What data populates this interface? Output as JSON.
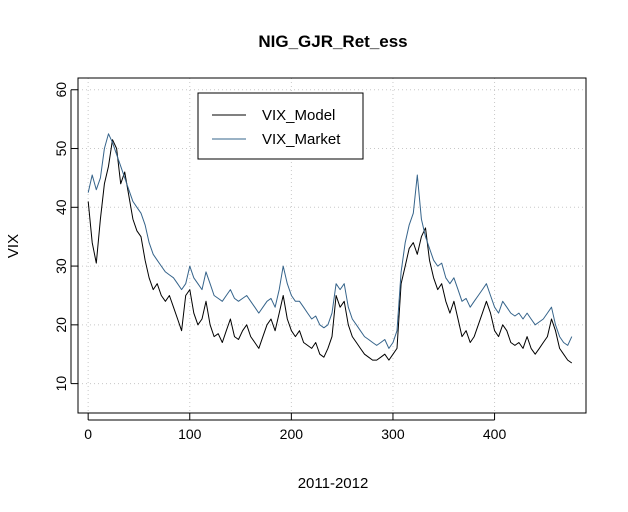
{
  "chart_data": {
    "type": "line",
    "title": "NIG_GJR_Ret_ess",
    "xlabel": "2011-2012",
    "ylabel": "VIX",
    "xlim": [
      -10,
      490
    ],
    "ylim": [
      5,
      62
    ],
    "xticks": [
      0,
      100,
      200,
      300,
      400
    ],
    "yticks": [
      10,
      20,
      30,
      40,
      50,
      60
    ],
    "grid": true,
    "legend_position": "top-left-inset",
    "series": [
      {
        "name": "VIX_Model",
        "color": "#000000",
        "points": [
          [
            0,
            41
          ],
          [
            4,
            34
          ],
          [
            8,
            30.5
          ],
          [
            12,
            38
          ],
          [
            16,
            44
          ],
          [
            20,
            47
          ],
          [
            24,
            51.5
          ],
          [
            28,
            50
          ],
          [
            32,
            44
          ],
          [
            36,
            46
          ],
          [
            40,
            42
          ],
          [
            44,
            38
          ],
          [
            48,
            36
          ],
          [
            52,
            35
          ],
          [
            56,
            31
          ],
          [
            60,
            28
          ],
          [
            64,
            26
          ],
          [
            68,
            27
          ],
          [
            72,
            25
          ],
          [
            76,
            24
          ],
          [
            80,
            25
          ],
          [
            84,
            23
          ],
          [
            88,
            21
          ],
          [
            92,
            19
          ],
          [
            96,
            25
          ],
          [
            100,
            26
          ],
          [
            104,
            22
          ],
          [
            108,
            20
          ],
          [
            112,
            21
          ],
          [
            116,
            24
          ],
          [
            120,
            20
          ],
          [
            124,
            18
          ],
          [
            128,
            18.5
          ],
          [
            132,
            17
          ],
          [
            136,
            19
          ],
          [
            140,
            21
          ],
          [
            144,
            18
          ],
          [
            148,
            17.5
          ],
          [
            152,
            19
          ],
          [
            156,
            20
          ],
          [
            160,
            18
          ],
          [
            164,
            17
          ],
          [
            168,
            16
          ],
          [
            172,
            18
          ],
          [
            176,
            20
          ],
          [
            180,
            21
          ],
          [
            184,
            19
          ],
          [
            188,
            22
          ],
          [
            192,
            25
          ],
          [
            196,
            21
          ],
          [
            200,
            19
          ],
          [
            204,
            18
          ],
          [
            208,
            19
          ],
          [
            212,
            17
          ],
          [
            216,
            16.5
          ],
          [
            220,
            16
          ],
          [
            224,
            17
          ],
          [
            228,
            15
          ],
          [
            232,
            14.5
          ],
          [
            236,
            16
          ],
          [
            240,
            18
          ],
          [
            244,
            25
          ],
          [
            248,
            23
          ],
          [
            252,
            24
          ],
          [
            256,
            20
          ],
          [
            260,
            18
          ],
          [
            264,
            17
          ],
          [
            268,
            16
          ],
          [
            272,
            15
          ],
          [
            276,
            14.5
          ],
          [
            280,
            14
          ],
          [
            284,
            14
          ],
          [
            288,
            14.5
          ],
          [
            292,
            15
          ],
          [
            296,
            14
          ],
          [
            300,
            15
          ],
          [
            304,
            16
          ],
          [
            308,
            27
          ],
          [
            312,
            30
          ],
          [
            316,
            33
          ],
          [
            320,
            34
          ],
          [
            324,
            32
          ],
          [
            328,
            35
          ],
          [
            332,
            36.5
          ],
          [
            336,
            31
          ],
          [
            340,
            28
          ],
          [
            344,
            26
          ],
          [
            348,
            27
          ],
          [
            352,
            24
          ],
          [
            356,
            22
          ],
          [
            360,
            24
          ],
          [
            364,
            21
          ],
          [
            368,
            18
          ],
          [
            372,
            19
          ],
          [
            376,
            17
          ],
          [
            380,
            18
          ],
          [
            384,
            20
          ],
          [
            388,
            22
          ],
          [
            392,
            24
          ],
          [
            396,
            22
          ],
          [
            400,
            19
          ],
          [
            404,
            18
          ],
          [
            408,
            20
          ],
          [
            412,
            19
          ],
          [
            416,
            17
          ],
          [
            420,
            16.5
          ],
          [
            424,
            17
          ],
          [
            428,
            16
          ],
          [
            432,
            18
          ],
          [
            436,
            16
          ],
          [
            440,
            15
          ],
          [
            444,
            16
          ],
          [
            448,
            17
          ],
          [
            452,
            18
          ],
          [
            456,
            21
          ],
          [
            460,
            19
          ],
          [
            464,
            16
          ],
          [
            468,
            15
          ],
          [
            472,
            14
          ],
          [
            476,
            13.5
          ]
        ]
      },
      {
        "name": "VIX_Market",
        "color": "#36648b",
        "points": [
          [
            0,
            42.5
          ],
          [
            4,
            45.5
          ],
          [
            8,
            43
          ],
          [
            12,
            45
          ],
          [
            16,
            50
          ],
          [
            20,
            52.5
          ],
          [
            24,
            51
          ],
          [
            28,
            49
          ],
          [
            32,
            47
          ],
          [
            36,
            45
          ],
          [
            40,
            43
          ],
          [
            44,
            41
          ],
          [
            48,
            40
          ],
          [
            52,
            39
          ],
          [
            56,
            37
          ],
          [
            60,
            34
          ],
          [
            64,
            32
          ],
          [
            68,
            31
          ],
          [
            72,
            30
          ],
          [
            76,
            29
          ],
          [
            80,
            28.5
          ],
          [
            84,
            28
          ],
          [
            88,
            27
          ],
          [
            92,
            26
          ],
          [
            96,
            27
          ],
          [
            100,
            30
          ],
          [
            104,
            28
          ],
          [
            108,
            27
          ],
          [
            112,
            26
          ],
          [
            116,
            29
          ],
          [
            120,
            27
          ],
          [
            124,
            25
          ],
          [
            128,
            24.5
          ],
          [
            132,
            24
          ],
          [
            136,
            25
          ],
          [
            140,
            26
          ],
          [
            144,
            24.5
          ],
          [
            148,
            24
          ],
          [
            152,
            24.5
          ],
          [
            156,
            25
          ],
          [
            160,
            24
          ],
          [
            164,
            23
          ],
          [
            168,
            22
          ],
          [
            172,
            23
          ],
          [
            176,
            24
          ],
          [
            180,
            24.5
          ],
          [
            184,
            23
          ],
          [
            188,
            26
          ],
          [
            192,
            30
          ],
          [
            196,
            27
          ],
          [
            200,
            25
          ],
          [
            204,
            24
          ],
          [
            208,
            24
          ],
          [
            212,
            23
          ],
          [
            216,
            22
          ],
          [
            220,
            21
          ],
          [
            224,
            21.5
          ],
          [
            228,
            20
          ],
          [
            232,
            19.5
          ],
          [
            236,
            20
          ],
          [
            240,
            22
          ],
          [
            244,
            27
          ],
          [
            248,
            26
          ],
          [
            252,
            27
          ],
          [
            256,
            23
          ],
          [
            260,
            21
          ],
          [
            264,
            20
          ],
          [
            268,
            19
          ],
          [
            272,
            18
          ],
          [
            276,
            17.5
          ],
          [
            280,
            17
          ],
          [
            284,
            16.5
          ],
          [
            288,
            17
          ],
          [
            292,
            17.5
          ],
          [
            296,
            16
          ],
          [
            300,
            17
          ],
          [
            304,
            19
          ],
          [
            308,
            29
          ],
          [
            312,
            34
          ],
          [
            316,
            37
          ],
          [
            320,
            39
          ],
          [
            324,
            45.5
          ],
          [
            328,
            38
          ],
          [
            332,
            35
          ],
          [
            336,
            33
          ],
          [
            340,
            31
          ],
          [
            344,
            30
          ],
          [
            348,
            30.5
          ],
          [
            352,
            28
          ],
          [
            356,
            27
          ],
          [
            360,
            28
          ],
          [
            364,
            26
          ],
          [
            368,
            24
          ],
          [
            372,
            24.5
          ],
          [
            376,
            23
          ],
          [
            380,
            24
          ],
          [
            384,
            25
          ],
          [
            388,
            26
          ],
          [
            392,
            27
          ],
          [
            396,
            25
          ],
          [
            400,
            23
          ],
          [
            404,
            22
          ],
          [
            408,
            24
          ],
          [
            412,
            23
          ],
          [
            416,
            22
          ],
          [
            420,
            21.5
          ],
          [
            424,
            22
          ],
          [
            428,
            21
          ],
          [
            432,
            22
          ],
          [
            436,
            21
          ],
          [
            440,
            20
          ],
          [
            444,
            20.5
          ],
          [
            448,
            21
          ],
          [
            452,
            22
          ],
          [
            456,
            23
          ],
          [
            460,
            20
          ],
          [
            464,
            18
          ],
          [
            468,
            17
          ],
          [
            472,
            16.5
          ],
          [
            476,
            18
          ]
        ]
      }
    ]
  }
}
